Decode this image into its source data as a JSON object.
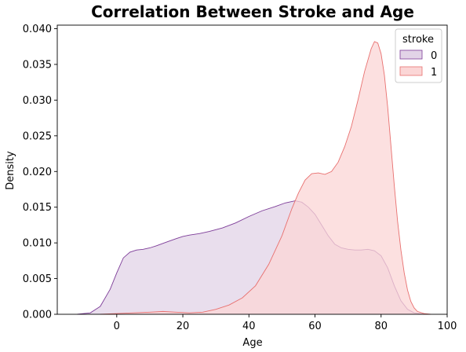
{
  "chart_data": {
    "type": "area",
    "title": "Correlation Between Stroke and Age",
    "xlabel": "Age",
    "ylabel": "Density",
    "xlim": [
      -18,
      100
    ],
    "ylim": [
      0,
      0.0405
    ],
    "xticks": [
      0,
      20,
      40,
      60,
      80,
      100
    ],
    "yticks": [
      0.0,
      0.005,
      0.01,
      0.015,
      0.02,
      0.025,
      0.03,
      0.035,
      0.04
    ],
    "ytick_labels": [
      "0.000",
      "0.005",
      "0.010",
      "0.015",
      "0.020",
      "0.025",
      "0.030",
      "0.035",
      "0.040"
    ],
    "grid": false,
    "legend": {
      "title": "stroke",
      "placement": "top-right"
    },
    "series": [
      {
        "name": "0",
        "fill_color": "#e2d3e7",
        "line_color": "#7d3c98",
        "points": [
          [
            -12,
            0.0
          ],
          [
            -8,
            0.0002
          ],
          [
            -5,
            0.0011
          ],
          [
            -2,
            0.0035
          ],
          [
            0,
            0.0058
          ],
          [
            2,
            0.0079
          ],
          [
            4,
            0.0087
          ],
          [
            6,
            0.009
          ],
          [
            8,
            0.0091
          ],
          [
            10,
            0.0093
          ],
          [
            12,
            0.0096
          ],
          [
            15,
            0.0101
          ],
          [
            18,
            0.0106
          ],
          [
            20,
            0.0109
          ],
          [
            22,
            0.0111
          ],
          [
            25,
            0.0113
          ],
          [
            28,
            0.0116
          ],
          [
            32,
            0.0121
          ],
          [
            36,
            0.0128
          ],
          [
            40,
            0.0137
          ],
          [
            44,
            0.0145
          ],
          [
            48,
            0.0151
          ],
          [
            51,
            0.0156
          ],
          [
            54,
            0.0159
          ],
          [
            56,
            0.0157
          ],
          [
            58,
            0.015
          ],
          [
            60,
            0.014
          ],
          [
            62,
            0.0125
          ],
          [
            64,
            0.011
          ],
          [
            66,
            0.0098
          ],
          [
            68,
            0.0093
          ],
          [
            70,
            0.0091
          ],
          [
            72,
            0.009
          ],
          [
            74,
            0.009
          ],
          [
            76,
            0.0091
          ],
          [
            78,
            0.0089
          ],
          [
            80,
            0.0082
          ],
          [
            82,
            0.0065
          ],
          [
            84,
            0.004
          ],
          [
            86,
            0.0019
          ],
          [
            88,
            0.0007
          ],
          [
            90,
            0.0002
          ],
          [
            93,
            0.0
          ]
        ]
      },
      {
        "name": "1",
        "fill_color": "#fbd6d6",
        "line_color": "#e8706f",
        "points": [
          [
            -5,
            0.0
          ],
          [
            0,
            0.0001
          ],
          [
            5,
            0.0002
          ],
          [
            10,
            0.0003
          ],
          [
            14,
            0.0004
          ],
          [
            18,
            0.0003
          ],
          [
            22,
            0.0002
          ],
          [
            26,
            0.0003
          ],
          [
            30,
            0.0007
          ],
          [
            34,
            0.0013
          ],
          [
            38,
            0.0023
          ],
          [
            42,
            0.004
          ],
          [
            46,
            0.007
          ],
          [
            50,
            0.011
          ],
          [
            53,
            0.0148
          ],
          [
            55,
            0.017
          ],
          [
            57,
            0.0188
          ],
          [
            59,
            0.0197
          ],
          [
            61,
            0.0198
          ],
          [
            63,
            0.0196
          ],
          [
            65,
            0.02
          ],
          [
            67,
            0.0213
          ],
          [
            69,
            0.0235
          ],
          [
            71,
            0.0263
          ],
          [
            73,
            0.03
          ],
          [
            75,
            0.034
          ],
          [
            77,
            0.0372
          ],
          [
            78,
            0.0382
          ],
          [
            79,
            0.038
          ],
          [
            80,
            0.0365
          ],
          [
            81,
            0.0335
          ],
          [
            82,
            0.029
          ],
          [
            83,
            0.0235
          ],
          [
            84,
            0.018
          ],
          [
            85,
            0.013
          ],
          [
            86,
            0.009
          ],
          [
            87,
            0.0058
          ],
          [
            88,
            0.0034
          ],
          [
            89,
            0.0018
          ],
          [
            90,
            0.0009
          ],
          [
            91,
            0.0004
          ],
          [
            93,
            0.0001
          ],
          [
            95,
            0.0
          ]
        ]
      }
    ]
  }
}
